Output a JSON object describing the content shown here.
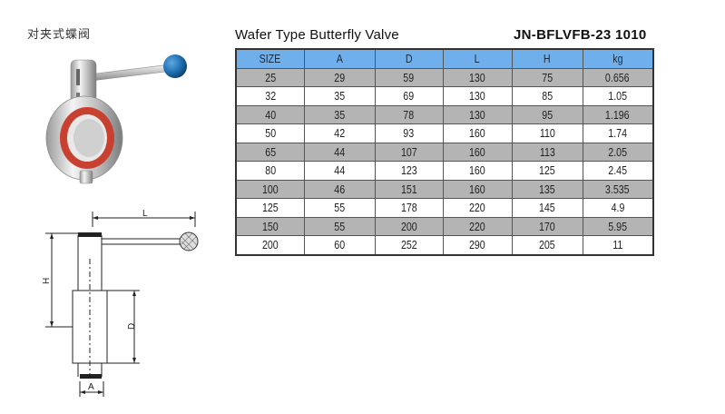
{
  "cn_title": "对夹式蝶阀",
  "en_title": "Wafer Type  Butterfly Valve",
  "model": "JN-BFLVFB-23 1010",
  "columns": [
    "SIZE",
    "A",
    "D",
    "L",
    "H",
    "kg"
  ],
  "rows": [
    [
      "25",
      "29",
      "59",
      "130",
      "75",
      "0.656"
    ],
    [
      "32",
      "35",
      "69",
      "130",
      "85",
      "1.05"
    ],
    [
      "40",
      "35",
      "78",
      "130",
      "95",
      "1.196"
    ],
    [
      "50",
      "42",
      "93",
      "160",
      "110",
      "1.74"
    ],
    [
      "65",
      "44",
      "107",
      "160",
      "113",
      "2.05"
    ],
    [
      "80",
      "44",
      "123",
      "160",
      "125",
      "2.45"
    ],
    [
      "100",
      "46",
      "151",
      "160",
      "135",
      "3.535"
    ],
    [
      "125",
      "55",
      "178",
      "220",
      "145",
      "4.9"
    ],
    [
      "150",
      "55",
      "200",
      "220",
      "170",
      "5.95"
    ],
    [
      "200",
      "60",
      "252",
      "290",
      "205",
      "11"
    ]
  ],
  "drawing": {
    "label_L": "L",
    "label_H": "H",
    "label_D": "D",
    "label_A": "A"
  },
  "colors": {
    "header_bg": "#6fb0ec",
    "shaded_row": "#b4b4b4",
    "handle_knob": "#1e6fb0",
    "seal": "#d8402a"
  }
}
